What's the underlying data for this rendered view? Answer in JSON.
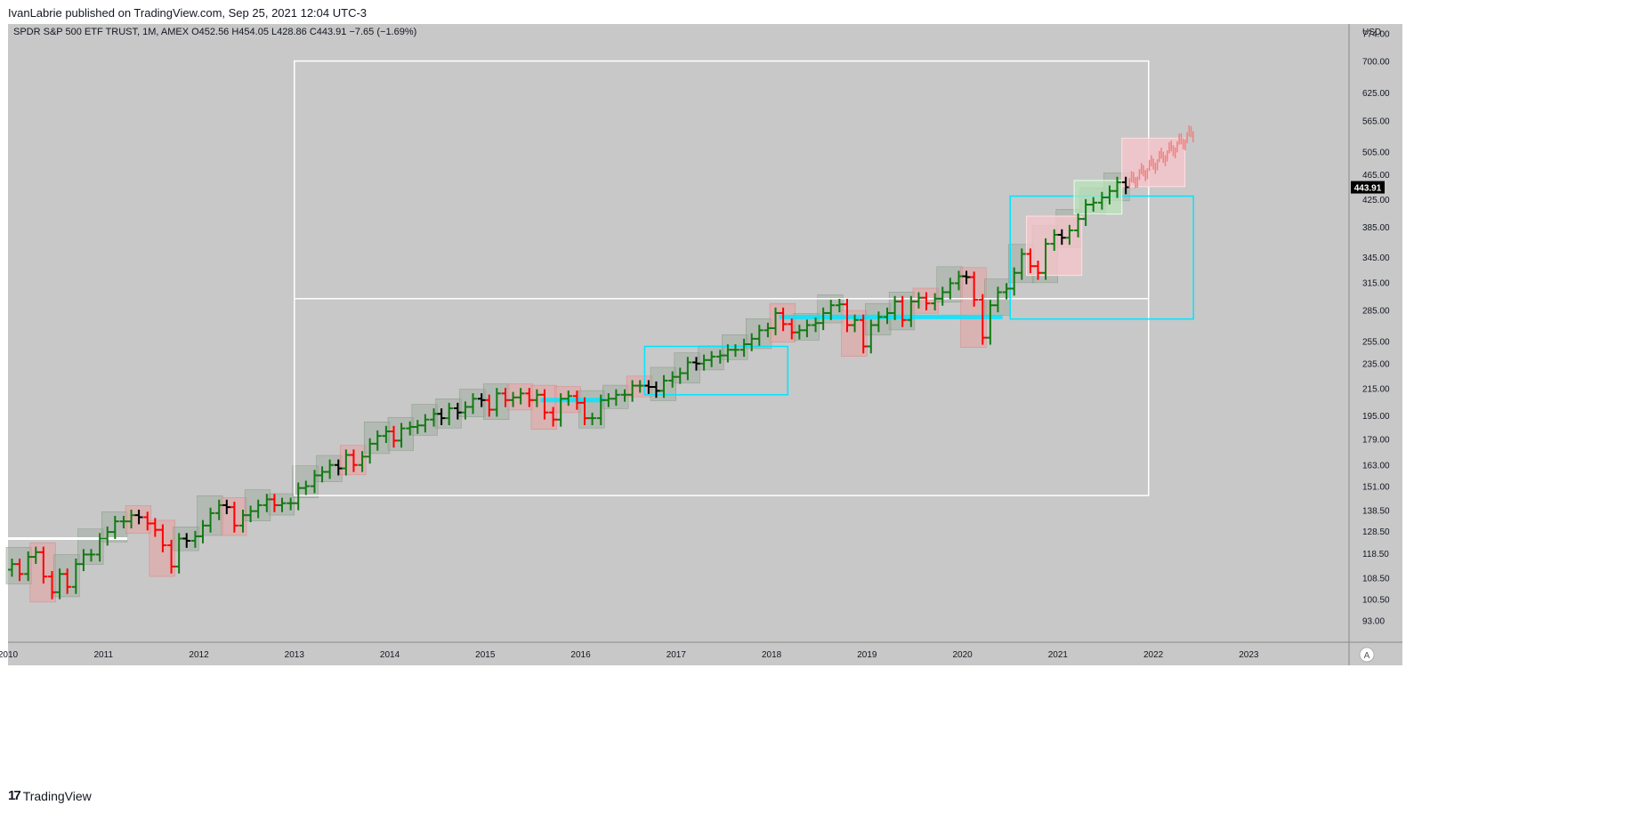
{
  "header": {
    "published_by": "IvanLabrie published on TradingView.com, Sep 25, 2021 12:04 UTC-3"
  },
  "footer": {
    "brand": "TradingView",
    "logo_glyph": "17"
  },
  "colors": {
    "background": "#c8c8c8",
    "up": "#137a13",
    "down": "#ff0000",
    "neutral": "#000000",
    "projection": "#f08080",
    "cyan": "#00e5ff",
    "white": "#ffffff",
    "price_tag_bg": "#000000"
  },
  "chart_data": {
    "type": "line",
    "title": "SPDR S&P 500 ETF TRUST, 1M, AMEX",
    "ohlc_label": "SPDR S&P 500 ETF TRUST, 1M, AMEX  O452.56  H454.05  L428.86  C443.91  −7.65 (−1.69%)",
    "open": 452.56,
    "high": 454.05,
    "low": 428.86,
    "close": 443.91,
    "change": "−7.65 (−1.69%)",
    "last_price_label": "443.91",
    "currency": "USD",
    "scale": "log",
    "y_ticks": [
      "93.00",
      "100.50",
      "108.50",
      "118.50",
      "128.50",
      "138.50",
      "151.00",
      "163.00",
      "179.00",
      "195.00",
      "215.00",
      "235.00",
      "255.00",
      "285.00",
      "315.00",
      "345.00",
      "385.00",
      "425.00",
      "465.00",
      "505.00",
      "565.00",
      "625.00",
      "700.00",
      "774.00"
    ],
    "x_ticks": [
      "2010",
      "2011",
      "2012",
      "2013",
      "2014",
      "2015",
      "2016",
      "2017",
      "2018",
      "2019",
      "2020",
      "2021",
      "2022",
      "2023"
    ],
    "ylim": [
      86,
      800
    ],
    "xlim": [
      2010.0,
      2024.05
    ],
    "auto_scale_button": "A",
    "series_close": [
      [
        2010.0,
        114
      ],
      [
        2010.08,
        110
      ],
      [
        2010.17,
        117
      ],
      [
        2010.25,
        119
      ],
      [
        2010.33,
        109
      ],
      [
        2010.42,
        103
      ],
      [
        2010.5,
        110
      ],
      [
        2010.58,
        105
      ],
      [
        2010.67,
        114
      ],
      [
        2010.75,
        118
      ],
      [
        2010.83,
        118
      ],
      [
        2010.92,
        125
      ],
      [
        2011.0,
        128
      ],
      [
        2011.08,
        133
      ],
      [
        2011.17,
        133
      ],
      [
        2011.25,
        136
      ],
      [
        2011.33,
        135
      ],
      [
        2011.42,
        132
      ],
      [
        2011.5,
        129
      ],
      [
        2011.58,
        122
      ],
      [
        2011.67,
        113
      ],
      [
        2011.75,
        125
      ],
      [
        2011.83,
        124
      ],
      [
        2011.92,
        126
      ],
      [
        2012.0,
        131
      ],
      [
        2012.08,
        137
      ],
      [
        2012.17,
        141
      ],
      [
        2012.25,
        140
      ],
      [
        2012.33,
        131
      ],
      [
        2012.42,
        136
      ],
      [
        2012.5,
        138
      ],
      [
        2012.58,
        141
      ],
      [
        2012.67,
        144
      ],
      [
        2012.75,
        141
      ],
      [
        2012.83,
        142
      ],
      [
        2012.92,
        142
      ],
      [
        2013.0,
        150
      ],
      [
        2013.08,
        151
      ],
      [
        2013.17,
        157
      ],
      [
        2013.25,
        159
      ],
      [
        2013.33,
        163
      ],
      [
        2013.42,
        161
      ],
      [
        2013.5,
        169
      ],
      [
        2013.58,
        163
      ],
      [
        2013.67,
        168
      ],
      [
        2013.75,
        176
      ],
      [
        2013.83,
        181
      ],
      [
        2013.92,
        184
      ],
      [
        2014.0,
        178
      ],
      [
        2014.08,
        186
      ],
      [
        2014.17,
        187
      ],
      [
        2014.25,
        188
      ],
      [
        2014.33,
        192
      ],
      [
        2014.42,
        196
      ],
      [
        2014.5,
        193
      ],
      [
        2014.58,
        200
      ],
      [
        2014.67,
        197
      ],
      [
        2014.75,
        201
      ],
      [
        2014.83,
        207
      ],
      [
        2014.92,
        206
      ],
      [
        2015.0,
        199
      ],
      [
        2015.08,
        211
      ],
      [
        2015.17,
        206
      ],
      [
        2015.25,
        208
      ],
      [
        2015.33,
        211
      ],
      [
        2015.42,
        206
      ],
      [
        2015.5,
        210
      ],
      [
        2015.58,
        197
      ],
      [
        2015.67,
        192
      ],
      [
        2015.75,
        207
      ],
      [
        2015.83,
        209
      ],
      [
        2015.92,
        204
      ],
      [
        2016.0,
        193
      ],
      [
        2016.08,
        193
      ],
      [
        2016.17,
        206
      ],
      [
        2016.25,
        207
      ],
      [
        2016.33,
        210
      ],
      [
        2016.42,
        210
      ],
      [
        2016.5,
        217
      ],
      [
        2016.58,
        217
      ],
      [
        2016.67,
        216
      ],
      [
        2016.75,
        213
      ],
      [
        2016.83,
        221
      ],
      [
        2016.92,
        224
      ],
      [
        2017.0,
        227
      ],
      [
        2017.08,
        236
      ],
      [
        2017.17,
        235
      ],
      [
        2017.25,
        238
      ],
      [
        2017.33,
        241
      ],
      [
        2017.42,
        242
      ],
      [
        2017.5,
        247
      ],
      [
        2017.58,
        247
      ],
      [
        2017.67,
        252
      ],
      [
        2017.75,
        257
      ],
      [
        2017.83,
        265
      ],
      [
        2017.92,
        267
      ],
      [
        2018.0,
        282
      ],
      [
        2018.08,
        271
      ],
      [
        2018.17,
        263
      ],
      [
        2018.25,
        265
      ],
      [
        2018.33,
        270
      ],
      [
        2018.42,
        272
      ],
      [
        2018.5,
        282
      ],
      [
        2018.58,
        290
      ],
      [
        2018.67,
        291
      ],
      [
        2018.75,
        270
      ],
      [
        2018.83,
        275
      ],
      [
        2018.92,
        250
      ],
      [
        2019.0,
        270
      ],
      [
        2019.08,
        278
      ],
      [
        2019.17,
        282
      ],
      [
        2019.25,
        294
      ],
      [
        2019.33,
        275
      ],
      [
        2019.42,
        294
      ],
      [
        2019.5,
        298
      ],
      [
        2019.58,
        292
      ],
      [
        2019.67,
        297
      ],
      [
        2019.75,
        304
      ],
      [
        2019.83,
        314
      ],
      [
        2019.92,
        322
      ],
      [
        2020.0,
        321
      ],
      [
        2020.08,
        296
      ],
      [
        2020.17,
        258
      ],
      [
        2020.25,
        290
      ],
      [
        2020.33,
        304
      ],
      [
        2020.42,
        308
      ],
      [
        2020.5,
        326
      ],
      [
        2020.58,
        349
      ],
      [
        2020.67,
        334
      ],
      [
        2020.75,
        326
      ],
      [
        2020.83,
        362
      ],
      [
        2020.92,
        374
      ],
      [
        2021.0,
        370
      ],
      [
        2021.08,
        380
      ],
      [
        2021.17,
        396
      ],
      [
        2021.25,
        417
      ],
      [
        2021.33,
        420
      ],
      [
        2021.42,
        428
      ],
      [
        2021.5,
        438
      ],
      [
        2021.58,
        452
      ],
      [
        2021.67,
        444
      ]
    ],
    "projection_start": 2021.75,
    "projection_end": 2022.42,
    "projection_range": [
      450,
      540
    ],
    "annotations": {
      "white_horizontal_2010": 125,
      "white_box": {
        "x0": 2013.0,
        "x1": 2021.95,
        "top": 700,
        "mid": 297,
        "bottom": 146
      },
      "cyan_box_1": {
        "x0": 2016.67,
        "x1": 2018.17,
        "top": 250,
        "bottom": 210
      },
      "cyan_box_2": {
        "x0": 2020.5,
        "x1": 2022.42,
        "top": 430,
        "bottom": 276
      },
      "cyan_line_1": {
        "x0": 2015.58,
        "x1": 2016.25,
        "y": 206
      },
      "cyan_line_2": {
        "x0": 2018.08,
        "x1": 2020.42,
        "y": 278
      },
      "green_box": {
        "x0": 2021.17,
        "x1": 2021.67,
        "top": 455,
        "bottom": 403
      },
      "pink_boxes": [
        {
          "x0": 2020.67,
          "x1": 2021.25,
          "top": 400,
          "bottom": 323
        },
        {
          "x0": 2021.67,
          "x1": 2022.33,
          "top": 530,
          "bottom": 445
        }
      ]
    }
  }
}
